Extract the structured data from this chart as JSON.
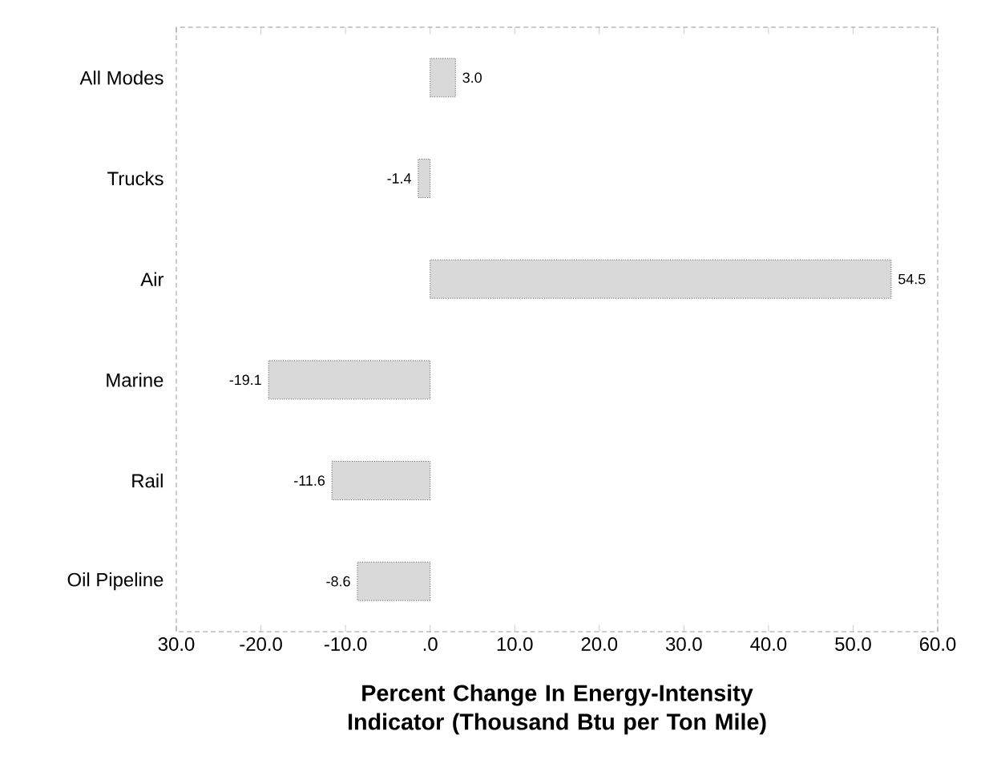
{
  "chart_data": {
    "type": "bar",
    "orientation": "horizontal",
    "xlabel": "Percent Change In Energy-Intensity Indicator (Thousand Btu per Ton Mile)",
    "categories": [
      "All Modes",
      "Trucks",
      "Air",
      "Marine",
      "Rail",
      "Oil Pipeline"
    ],
    "values": [
      3.0,
      -1.4,
      54.5,
      -19.1,
      -11.6,
      -8.6
    ],
    "value_labels": [
      "3.0",
      "-1.4",
      "54.5",
      "-19.1",
      "-11.6",
      "-8.6"
    ],
    "color": "#d9d9d9",
    "grid": false,
    "xlim": [
      -30,
      60
    ],
    "xticks": [
      {
        "value": -30,
        "label": "30.0"
      },
      {
        "value": -20,
        "label": "-20.0"
      },
      {
        "value": -10,
        "label": "-10.0"
      },
      {
        "value": 0,
        "label": ".0"
      },
      {
        "value": 10,
        "label": "10.0"
      },
      {
        "value": 20,
        "label": "20.0"
      },
      {
        "value": 30,
        "label": "30.0"
      },
      {
        "value": 40,
        "label": "40.0"
      },
      {
        "value": 50,
        "label": "50.0"
      },
      {
        "value": 60,
        "label": "60.0"
      }
    ]
  }
}
